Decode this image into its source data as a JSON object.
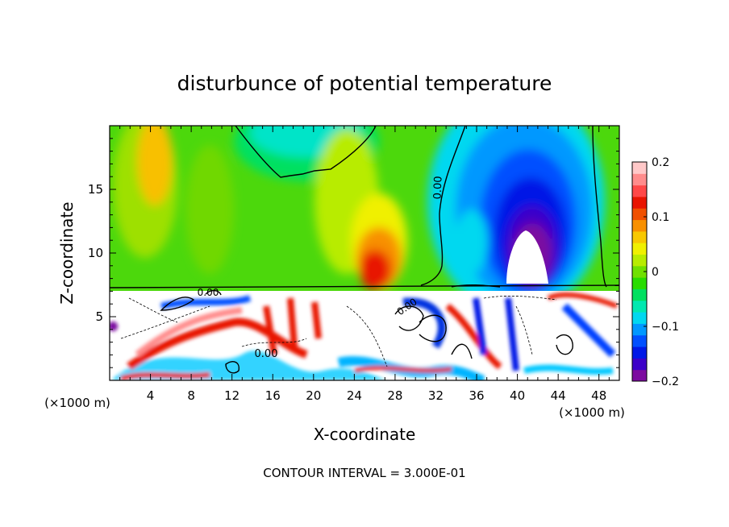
{
  "chart_data": {
    "type": "heatmap",
    "title": "disturbunce of potential temperature",
    "xlabel": "X-coordinate",
    "ylabel": "Z-coordinate",
    "x_unit": "(×1000 m)",
    "z_unit": "(×1000 m)",
    "x_ticks": [
      "4",
      "8",
      "12",
      "16",
      "20",
      "24",
      "28",
      "32",
      "36",
      "40",
      "44",
      "48"
    ],
    "x_tick_values": [
      4,
      8,
      12,
      16,
      20,
      24,
      28,
      32,
      36,
      40,
      44,
      48
    ],
    "z_ticks": [
      "5",
      "10",
      "15"
    ],
    "z_tick_values": [
      5,
      10,
      15
    ],
    "xlim": [
      0,
      50
    ],
    "zlim": [
      0,
      20
    ],
    "contour_labels": [
      "0.00",
      "0.00",
      "0.00",
      "0.00"
    ],
    "contour_interval_text": "CONTOUR INTERVAL = 3.000E-01",
    "colorbar": {
      "ticks": [
        "0.2",
        "0.1",
        "0",
        "−0.1",
        "−0.2"
      ],
      "tick_values": [
        0.2,
        0.1,
        0,
        -0.1,
        -0.2
      ],
      "range": [
        -0.2,
        0.2
      ],
      "colors": [
        "#7c0ba0",
        "#3c00c8",
        "#0018e6",
        "#0050ff",
        "#0098ff",
        "#00d8f0",
        "#00e8b0",
        "#00e060",
        "#28dc00",
        "#70e000",
        "#b8ec00",
        "#f0f000",
        "#f8c800",
        "#f89000",
        "#f05000",
        "#e81400",
        "#ff4848",
        "#ff8c8c",
        "#ffc8c8"
      ],
      "below_color": "#7c0ba0",
      "above_color": "#ffffff"
    },
    "features": [
      {
        "name": "warm anomaly",
        "x": [
          22,
          29
        ],
        "z": [
          7.3,
          12.5
        ],
        "value": 0.15
      },
      {
        "name": "cold anomaly",
        "x": [
          36,
          46
        ],
        "z": [
          7.3,
          19.5
        ],
        "value": -0.25
      },
      {
        "name": "warm upper-left",
        "x": [
          3,
          7
        ],
        "z": [
          14,
          20
        ],
        "value": 0.08
      }
    ]
  }
}
